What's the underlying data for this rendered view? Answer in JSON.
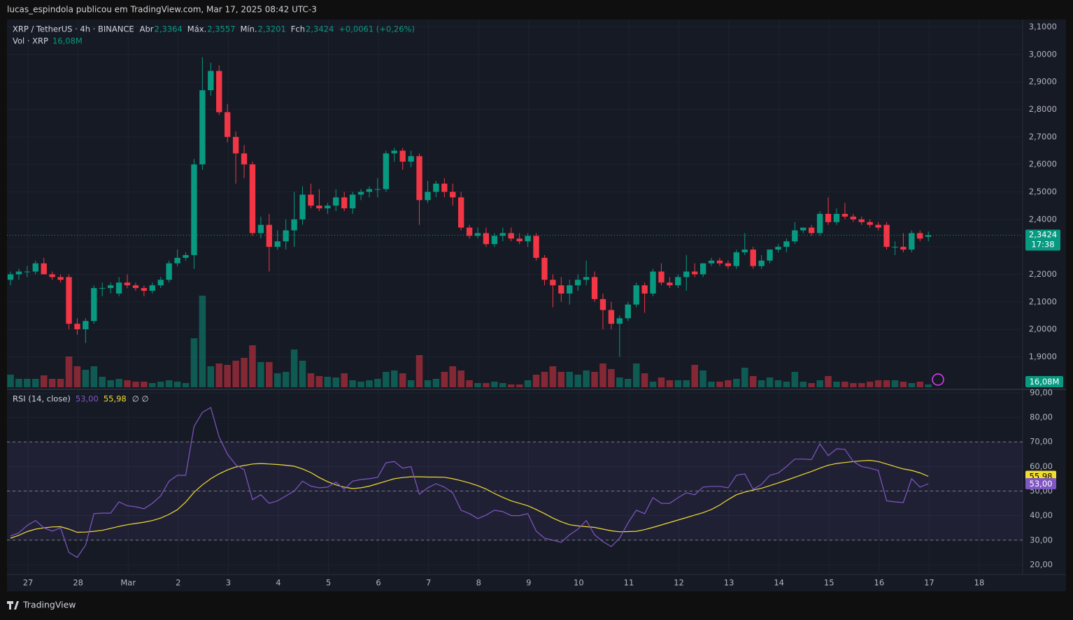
{
  "publisher": "lucas_espindola publicou em TradingView.com, Mar 17, 2025 08:42 UTC-3",
  "footer": "TradingView",
  "chart_data": {
    "type": "candlestick",
    "header": {
      "symbol": "XRP / TetherUS · 4h · BINANCE",
      "ohlc": [
        {
          "label": "Abr",
          "value": "2,3364"
        },
        {
          "label": "Máx.",
          "value": "2,3557"
        },
        {
          "label": "Mín.",
          "value": "2,3201"
        },
        {
          "label": "Fch",
          "value": "2,3424"
        }
      ],
      "change": "+0,0061 (+0,26%)"
    },
    "volume_legend": {
      "label": "Vol · XRP",
      "value": "16,08M"
    },
    "up_color": "#089981",
    "down_color": "#f23645",
    "open": [
      2.18,
      2.2,
      2.21,
      2.21,
      2.24,
      2.2,
      2.19,
      2.19,
      2.02,
      2.0,
      2.03,
      2.15,
      2.15,
      2.13,
      2.17,
      2.16,
      2.15,
      2.14,
      2.16,
      2.18,
      2.24,
      2.26,
      2.27,
      2.6,
      2.87,
      2.94,
      2.79,
      2.7,
      2.64,
      2.6,
      2.35,
      2.38,
      2.3,
      2.32,
      2.36,
      2.4,
      2.49,
      2.45,
      2.44,
      2.45,
      2.48,
      2.44,
      2.49,
      2.5,
      2.51,
      2.51,
      2.64,
      2.65,
      2.61,
      2.63,
      2.47,
      2.5,
      2.53,
      2.5,
      2.48,
      2.37,
      2.34,
      2.35,
      2.31,
      2.34,
      2.35,
      2.33,
      2.32,
      2.34,
      2.26,
      2.18,
      2.16,
      2.13,
      2.16,
      2.18,
      2.19,
      2.11,
      2.07,
      2.02,
      2.04,
      2.09,
      2.16,
      2.13,
      2.21,
      2.17,
      2.16,
      2.19,
      2.21,
      2.2,
      2.24,
      2.25,
      2.24,
      2.23,
      2.28,
      2.29,
      2.23,
      2.25,
      2.29,
      2.3,
      2.32,
      2.36,
      2.37,
      2.35,
      2.42,
      2.39,
      2.42,
      2.41,
      2.4,
      2.39,
      2.38,
      2.38,
      2.3,
      2.3,
      2.29,
      2.35,
      2.3364
    ],
    "high": [
      2.21,
      2.22,
      2.23,
      2.25,
      2.26,
      2.21,
      2.2,
      2.2,
      2.04,
      2.04,
      2.16,
      2.17,
      2.17,
      2.19,
      2.2,
      2.17,
      2.16,
      2.17,
      2.19,
      2.25,
      2.29,
      2.28,
      2.62,
      2.99,
      2.97,
      2.96,
      2.82,
      2.72,
      2.67,
      2.61,
      2.41,
      2.42,
      2.36,
      2.4,
      2.5,
      2.52,
      2.53,
      2.51,
      2.46,
      2.51,
      2.5,
      2.5,
      2.51,
      2.52,
      2.55,
      2.65,
      2.66,
      2.66,
      2.65,
      2.64,
      2.54,
      2.54,
      2.55,
      2.53,
      2.5,
      2.38,
      2.37,
      2.37,
      2.35,
      2.37,
      2.37,
      2.35,
      2.35,
      2.35,
      2.27,
      2.2,
      2.19,
      2.18,
      2.2,
      2.25,
      2.21,
      2.13,
      2.1,
      2.05,
      2.1,
      2.17,
      2.17,
      2.22,
      2.24,
      2.19,
      2.2,
      2.27,
      2.24,
      2.24,
      2.26,
      2.26,
      2.25,
      2.29,
      2.35,
      2.3,
      2.27,
      2.29,
      2.31,
      2.33,
      2.39,
      2.37,
      2.38,
      2.43,
      2.48,
      2.44,
      2.46,
      2.42,
      2.41,
      2.4,
      2.39,
      2.39,
      2.32,
      2.35,
      2.36,
      2.36,
      2.3557
    ],
    "low": [
      2.16,
      2.18,
      2.19,
      2.2,
      2.2,
      2.18,
      2.17,
      2.0,
      1.98,
      1.95,
      2.02,
      2.12,
      2.13,
      2.12,
      2.15,
      2.14,
      2.12,
      2.13,
      2.15,
      2.17,
      2.23,
      2.25,
      2.22,
      2.58,
      2.85,
      2.78,
      2.68,
      2.53,
      2.55,
      2.34,
      2.33,
      2.21,
      2.29,
      2.29,
      2.3,
      2.38,
      2.44,
      2.43,
      2.42,
      2.43,
      2.43,
      2.42,
      2.47,
      2.48,
      2.48,
      2.5,
      2.61,
      2.58,
      2.59,
      2.38,
      2.46,
      2.48,
      2.48,
      2.45,
      2.36,
      2.33,
      2.33,
      2.3,
      2.3,
      2.32,
      2.32,
      2.31,
      2.3,
      2.25,
      2.16,
      2.08,
      2.1,
      2.09,
      2.14,
      2.16,
      2.1,
      2.0,
      2.0,
      1.9,
      2.03,
      2.08,
      2.06,
      2.12,
      2.16,
      2.15,
      2.15,
      2.14,
      2.19,
      2.19,
      2.23,
      2.23,
      2.22,
      2.22,
      2.27,
      2.22,
      2.22,
      2.24,
      2.28,
      2.28,
      2.31,
      2.35,
      2.34,
      2.34,
      2.38,
      2.38,
      2.4,
      2.39,
      2.38,
      2.37,
      2.36,
      2.29,
      2.27,
      2.28,
      2.28,
      2.32,
      2.3201
    ],
    "close": [
      2.2,
      2.21,
      2.21,
      2.24,
      2.2,
      2.19,
      2.18,
      2.02,
      2.0,
      2.03,
      2.15,
      2.15,
      2.16,
      2.17,
      2.16,
      2.15,
      2.14,
      2.16,
      2.18,
      2.24,
      2.26,
      2.27,
      2.6,
      2.87,
      2.94,
      2.79,
      2.7,
      2.64,
      2.6,
      2.35,
      2.38,
      2.3,
      2.32,
      2.36,
      2.4,
      2.49,
      2.45,
      2.44,
      2.45,
      2.48,
      2.44,
      2.49,
      2.5,
      2.51,
      2.51,
      2.64,
      2.65,
      2.61,
      2.63,
      2.47,
      2.5,
      2.53,
      2.5,
      2.48,
      2.37,
      2.34,
      2.35,
      2.31,
      2.34,
      2.35,
      2.33,
      2.32,
      2.34,
      2.26,
      2.18,
      2.16,
      2.13,
      2.16,
      2.18,
      2.19,
      2.11,
      2.07,
      2.02,
      2.04,
      2.09,
      2.16,
      2.13,
      2.21,
      2.17,
      2.16,
      2.19,
      2.21,
      2.2,
      2.24,
      2.25,
      2.24,
      2.23,
      2.28,
      2.29,
      2.23,
      2.25,
      2.29,
      2.3,
      2.32,
      2.36,
      2.37,
      2.35,
      2.42,
      2.39,
      2.42,
      2.41,
      2.4,
      2.39,
      2.38,
      2.37,
      2.3,
      2.3,
      2.29,
      2.35,
      2.33,
      2.3424
    ],
    "volume": [
      72,
      48,
      48,
      48,
      68,
      48,
      48,
      176,
      120,
      100,
      120,
      60,
      40,
      48,
      40,
      32,
      32,
      24,
      32,
      40,
      32,
      24,
      280,
      524,
      120,
      136,
      128,
      152,
      168,
      240,
      144,
      144,
      80,
      88,
      216,
      152,
      80,
      64,
      60,
      56,
      80,
      40,
      32,
      40,
      48,
      88,
      96,
      80,
      40,
      184,
      40,
      48,
      88,
      120,
      96,
      40,
      24,
      24,
      32,
      24,
      16,
      16,
      40,
      72,
      88,
      120,
      88,
      88,
      72,
      96,
      88,
      136,
      104,
      56,
      48,
      136,
      80,
      32,
      56,
      40,
      40,
      40,
      128,
      96,
      32,
      32,
      40,
      48,
      112,
      64,
      40,
      56,
      40,
      32,
      88,
      32,
      24,
      40,
      64,
      32,
      32,
      24,
      24,
      32,
      40,
      40,
      40,
      32,
      24,
      32,
      16.08
    ],
    "volume_last_label": "16,08M",
    "last_price_label": "2,3424",
    "countdown": "17:38",
    "xlim": [
      -0.42,
      121.3
    ],
    "xticks": [
      {
        "value": 2.1,
        "label": "27"
      },
      {
        "value": 8.1,
        "label": "28"
      },
      {
        "value": 14.1,
        "label": "Mar"
      },
      {
        "value": 20.1,
        "label": "2"
      },
      {
        "value": 26.1,
        "label": "3"
      },
      {
        "value": 32.1,
        "label": "4"
      },
      {
        "value": 38.1,
        "label": "5"
      },
      {
        "value": 44.1,
        "label": "6"
      },
      {
        "value": 50.1,
        "label": "7"
      },
      {
        "value": 56.1,
        "label": "8"
      },
      {
        "value": 62.1,
        "label": "9"
      },
      {
        "value": 68.1,
        "label": "10"
      },
      {
        "value": 74.1,
        "label": "11"
      },
      {
        "value": 80.1,
        "label": "12"
      },
      {
        "value": 86.1,
        "label": "13"
      },
      {
        "value": 92.1,
        "label": "14"
      },
      {
        "value": 98.1,
        "label": "15"
      },
      {
        "value": 104.1,
        "label": "16"
      },
      {
        "value": 110.1,
        "label": "17"
      },
      {
        "value": 116.1,
        "label": "18"
      }
    ],
    "ylim": [
      1.784,
      3.127
    ],
    "yticks": [
      {
        "value": 1.9,
        "label": "1,9000"
      },
      {
        "value": 2.0,
        "label": "2,0000"
      },
      {
        "value": 2.1,
        "label": "2,1000"
      },
      {
        "value": 2.2,
        "label": "2,2000"
      },
      {
        "value": 2.3,
        "label": "2,3000"
      },
      {
        "value": 2.4,
        "label": "2,4000"
      },
      {
        "value": 2.5,
        "label": "2,5000"
      },
      {
        "value": 2.6,
        "label": "2,6000"
      },
      {
        "value": 2.7,
        "label": "2,7000"
      },
      {
        "value": 2.8,
        "label": "2,8000"
      },
      {
        "value": 2.9,
        "label": "2,9000"
      },
      {
        "value": 3.0,
        "label": "3,0000"
      },
      {
        "value": 3.1,
        "label": "3,1000"
      }
    ],
    "grid": true,
    "rsi": {
      "legend": "RSI (14, close)",
      "symbols": "∅  ∅",
      "color": "#7e57c2",
      "ma_color": "#f0dc33",
      "values": [
        31.7,
        33,
        36,
        38,
        35,
        33.7,
        35,
        25,
        23,
        28,
        40.8,
        41,
        41,
        45.6,
        44,
        43.6,
        42.8,
        45,
        48,
        54,
        56.4,
        56.4,
        76.3,
        82,
        84,
        72,
        65,
        60.7,
        58.7,
        46.5,
        48.5,
        45,
        46,
        48,
        50,
        54,
        52,
        51.3,
        51.6,
        53.6,
        50.7,
        54,
        54.7,
        55,
        55.6,
        61.5,
        62,
        59.3,
        60,
        48.7,
        51.3,
        53,
        51.6,
        49.3,
        42.2,
        40.8,
        38.8,
        40.2,
        42.2,
        41.6,
        40,
        40,
        40.8,
        33.7,
        30.8,
        30,
        29.1,
        32.2,
        34.5,
        38,
        32.2,
        29.4,
        27.4,
        30.8,
        37,
        42.2,
        40.8,
        47.3,
        45,
        45,
        47.3,
        49.3,
        48.5,
        51.6,
        51.9,
        51.9,
        51.3,
        56.4,
        57,
        50.7,
        52.7,
        56.4,
        57.3,
        60,
        63,
        63,
        62.8,
        69.2,
        64.4,
        67.2,
        67,
        62,
        60,
        59.3,
        58.4,
        46,
        45.6,
        45.3,
        55,
        51.6,
        53
      ],
      "ma_values": [
        30.8,
        32,
        33.5,
        34.5,
        35,
        35.4,
        35.5,
        34.5,
        33.2,
        33.3,
        33.6,
        34,
        34.8,
        35.6,
        36.3,
        36.8,
        37.3,
        38,
        39,
        40.5,
        42.4,
        45.5,
        49.5,
        52.5,
        55,
        57,
        58.6,
        59.8,
        60.4,
        61,
        61.2,
        61,
        60.8,
        60.5,
        60.1,
        59,
        57.5,
        55.5,
        53.8,
        52.5,
        51.6,
        51,
        51.3,
        52,
        53,
        54,
        55,
        55.5,
        55.8,
        55.8,
        55.7,
        55.7,
        55.6,
        55,
        54.2,
        53.3,
        52.2,
        50.8,
        49,
        47.4,
        46,
        45,
        44,
        42.5,
        40.8,
        39,
        37.5,
        36.3,
        35.8,
        35.5,
        35.2,
        34.5,
        33.8,
        33.4,
        33.5,
        33.6,
        34.3,
        35.2,
        36.2,
        37.2,
        38.2,
        39.2,
        40.2,
        41.2,
        42.5,
        44.3,
        46.5,
        48.5,
        49.6,
        50.4,
        51.1,
        52.2,
        53.3,
        54.4,
        55.6,
        56.8,
        58,
        59.3,
        60.5,
        61.2,
        61.6,
        62,
        62.3,
        62.5,
        62,
        61,
        60,
        59,
        58.4,
        57.4,
        55.98
      ],
      "last_label": "53,00",
      "ma_last_label": "55,98",
      "bands": [
        70,
        50,
        30
      ],
      "lim": [
        16.0,
        91.4
      ],
      "ticks": [
        {
          "value": 20,
          "label": "20,00"
        },
        {
          "value": 30,
          "label": "30,00"
        },
        {
          "value": 40,
          "label": "40,00"
        },
        {
          "value": 50,
          "label": "50,00"
        },
        {
          "value": 60,
          "label": "60,00"
        },
        {
          "value": 70,
          "label": "70,00"
        },
        {
          "value": 80,
          "label": "80,00"
        },
        {
          "value": 90,
          "label": "90,00"
        }
      ]
    }
  }
}
